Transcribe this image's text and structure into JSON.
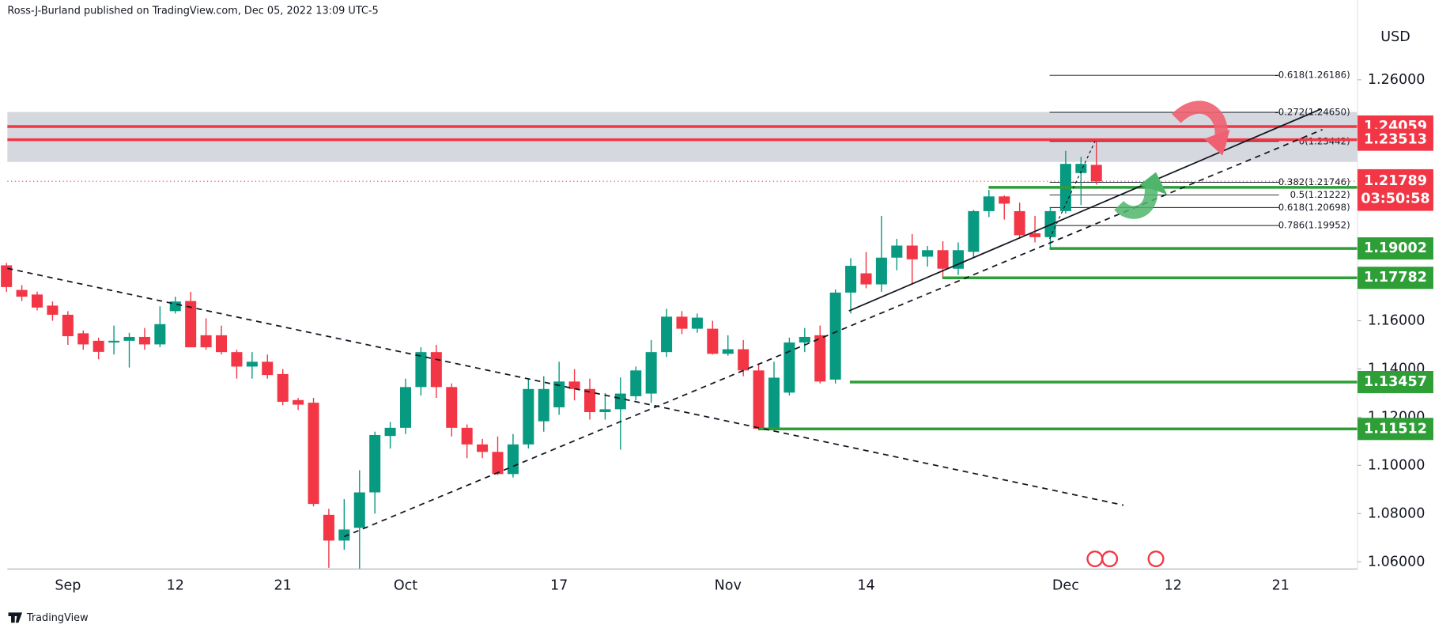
{
  "header": "Ross-J-Burland published on TradingView.com, Dec 05, 2022 13:09 UTC-5",
  "footer": "TradingView",
  "chart_data": {
    "type": "candlestick",
    "currency": "USD",
    "up_color": "#089981",
    "down_color": "#f23645",
    "categories": [
      null,
      null,
      null,
      null,
      "Sep",
      null,
      null,
      null,
      null,
      null,
      null,
      "12",
      null,
      null,
      null,
      null,
      null,
      null,
      "21",
      null,
      null,
      null,
      null,
      null,
      null,
      null,
      "Oct",
      null,
      null,
      null,
      null,
      null,
      null,
      null,
      null,
      null,
      "17",
      null,
      null,
      null,
      null,
      null,
      null,
      null,
      null,
      null,
      null,
      "Nov",
      null,
      null,
      null,
      null,
      null,
      null,
      null,
      null,
      "14",
      null,
      null,
      null,
      null,
      null,
      null,
      null,
      null,
      null,
      null,
      null,
      null,
      "Dec",
      null,
      null,
      null,
      null,
      null,
      null,
      "12",
      null,
      null,
      null,
      null,
      null,
      null,
      "21",
      null,
      null,
      null,
      null
    ],
    "open": [
      1.183,
      1.1728,
      1.1709,
      1.1663,
      1.1625,
      1.1548,
      1.1517,
      1.151,
      1.1517,
      1.1533,
      1.1502,
      1.164,
      1.1682,
      1.154,
      1.154,
      1.147,
      1.141,
      1.143,
      1.1379,
      1.1271,
      1.126,
      1.0795,
      1.0688,
      1.0741,
      1.0888,
      1.1122,
      1.1156,
      1.1325,
      1.147,
      1.1325,
      1.1156,
      1.1087,
      1.1056,
      1.0964,
      1.1087,
      1.1183,
      1.1241,
      1.1348,
      1.1317,
      1.1221,
      1.1233,
      1.1287,
      1.1298,
      1.147,
      1.1617,
      1.1567,
      1.1567,
      1.1463,
      1.1482,
      1.1394,
      1.1152,
      1.1302,
      1.151,
      1.154,
      1.1356,
      1.1717,
      1.1797,
      1.1751,
      1.1862,
      1.1912,
      1.1866,
      1.1893,
      1.1816,
      1.1886,
      1.2055,
      1.2116,
      1.2055,
      1.1963,
      1.1947,
      1.2055,
      1.2213,
      1.2247,
      null,
      null,
      null,
      null,
      null,
      null,
      null,
      null,
      null,
      null,
      null,
      null,
      null,
      null,
      null,
      null
    ],
    "high": [
      1.184,
      1.1748,
      1.1721,
      1.168,
      1.164,
      1.156,
      1.153,
      1.158,
      1.155,
      1.157,
      1.166,
      1.17,
      1.172,
      1.161,
      1.158,
      1.148,
      1.147,
      1.146,
      1.14,
      1.128,
      1.128,
      1.082,
      1.086,
      1.098,
      1.114,
      1.118,
      1.136,
      1.149,
      1.15,
      1.134,
      1.117,
      1.111,
      1.112,
      1.113,
      1.136,
      1.137,
      1.143,
      1.14,
      1.136,
      1.13,
      1.1365,
      1.141,
      1.152,
      1.165,
      1.164,
      1.163,
      1.16,
      1.154,
      1.152,
      1.142,
      1.143,
      1.153,
      1.157,
      1.158,
      1.173,
      1.186,
      1.1885,
      1.2035,
      1.194,
      1.196,
      1.191,
      1.193,
      1.1925,
      1.206,
      1.2143,
      1.212,
      1.209,
      1.2035,
      1.207,
      1.2305,
      1.228,
      1.2344,
      null,
      null,
      null,
      null,
      null,
      null,
      null,
      null,
      null,
      null,
      null,
      null,
      null,
      null,
      null,
      null
    ],
    "low": [
      1.172,
      1.1682,
      1.1643,
      1.16,
      1.15,
      1.148,
      1.144,
      1.146,
      1.1406,
      1.148,
      1.149,
      1.163,
      1.149,
      1.148,
      1.146,
      1.136,
      1.136,
      1.136,
      1.125,
      1.123,
      1.083,
      1.0575,
      1.065,
      1.057,
      1.08,
      1.107,
      1.113,
      1.129,
      1.128,
      1.112,
      1.103,
      1.103,
      1.096,
      1.095,
      1.107,
      1.114,
      1.121,
      1.127,
      1.119,
      1.119,
      1.1065,
      1.127,
      1.126,
      1.145,
      1.1545,
      1.155,
      1.146,
      1.1455,
      1.137,
      1.1145,
      1.114,
      1.129,
      1.147,
      1.134,
      1.134,
      1.163,
      1.1735,
      1.172,
      1.181,
      1.175,
      1.1825,
      1.178,
      1.179,
      1.186,
      1.203,
      1.202,
      1.194,
      1.1925,
      1.19,
      1.2045,
      1.208,
      1.2165,
      null,
      null,
      null,
      null,
      null,
      null,
      null,
      null,
      null,
      null,
      null,
      null,
      null,
      null,
      null,
      null
    ],
    "close": [
      1.174,
      1.17,
      1.1655,
      1.1625,
      1.1536,
      1.1502,
      1.1471,
      1.1517,
      1.1533,
      1.1502,
      1.1586,
      1.168,
      1.149,
      1.149,
      1.147,
      1.141,
      1.143,
      1.1375,
      1.1264,
      1.1252,
      1.084,
      1.0688,
      1.0734,
      1.0888,
      1.1126,
      1.1156,
      1.1325,
      1.147,
      1.1325,
      1.1156,
      1.1087,
      1.1056,
      1.0964,
      1.1087,
      1.1317,
      1.1317,
      1.1348,
      1.1317,
      1.1221,
      1.1233,
      1.1298,
      1.1394,
      1.147,
      1.1617,
      1.1567,
      1.1613,
      1.1463,
      1.1482,
      1.1394,
      1.1152,
      1.1364,
      1.151,
      1.1533,
      1.1348,
      1.1717,
      1.1828,
      1.1751,
      1.1862,
      1.1912,
      1.1855,
      1.1893,
      1.1816,
      1.1893,
      1.2055,
      1.2116,
      1.2086,
      1.1955,
      1.1947,
      1.2055,
      1.2251,
      1.2251,
      1.2178,
      null,
      null,
      null,
      null,
      null,
      null,
      null,
      null,
      null,
      null,
      null,
      null,
      null,
      null,
      null,
      null
    ],
    "ylim": [
      1.057,
      1.29
    ],
    "yticks": [
      {
        "value": 1.06,
        "label": "1.06000"
      },
      {
        "value": 1.08,
        "label": "1.08000"
      },
      {
        "value": 1.1,
        "label": "1.10000"
      },
      {
        "value": 1.12,
        "label": "1.12000"
      },
      {
        "value": 1.14,
        "label": "1.14000"
      },
      {
        "value": 1.16,
        "label": "1.16000"
      },
      {
        "value": 1.26,
        "label": "1.26000"
      }
    ],
    "grid": false,
    "levels": [
      {
        "value": 1.24059,
        "color": "#f23645"
      },
      {
        "value": 1.23513,
        "color": "#f23645"
      },
      {
        "value": 1.21534,
        "color": "#2e9e37"
      },
      {
        "value": 1.19002,
        "color": "#2e9e37"
      },
      {
        "value": 1.17782,
        "color": "#2e9e37"
      },
      {
        "value": 1.13457,
        "color": "#2e9e37"
      },
      {
        "value": 1.11512,
        "color": "#2e9e37"
      }
    ],
    "current_price": {
      "value": 1.21789,
      "countdown": "03:50:58",
      "color": "#f23645"
    },
    "fib_levels": [
      {
        "value": 1.26186,
        "label": "-0.618(1.26186)"
      },
      {
        "value": 1.2465,
        "label": "-0.272(1.24650)"
      },
      {
        "value": 1.23442,
        "label": "0(1.23442)"
      },
      {
        "value": 1.21746,
        "label": "0.382(1.21746)"
      },
      {
        "value": 1.21222,
        "label": "0.5(1.21222)"
      },
      {
        "value": 1.20698,
        "label": "0.618(1.20698)"
      },
      {
        "value": 1.19952,
        "label": "0.786(1.19952)"
      }
    ]
  }
}
